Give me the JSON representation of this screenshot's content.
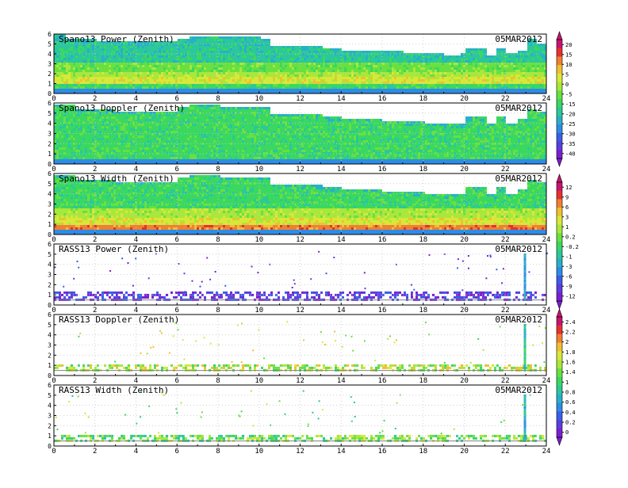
{
  "date_label": "05MAR2012",
  "x_ticks": [
    "0",
    "2",
    "4",
    "6",
    "8",
    "10",
    "12",
    "14",
    "16",
    "18",
    "20",
    "22",
    "24"
  ],
  "y_ticks": [
    "0",
    "1",
    "2",
    "3",
    "4",
    "5",
    "6"
  ],
  "colorbars": [
    {
      "ticks": [
        "20",
        "15",
        "10",
        "5",
        "0",
        "-5",
        "-15",
        "-20",
        "-25",
        "-30",
        "-35",
        "-40"
      ]
    },
    {
      "ticks": [
        "12",
        "9",
        "6",
        "3",
        "1",
        "0.2",
        "-0.2",
        "-1",
        "-3",
        "-6",
        "-9",
        "-12"
      ]
    },
    {
      "ticks": [
        "2.4",
        "2.2",
        "2",
        "1.8",
        "1.6",
        "1.4",
        "1",
        "0.8",
        "0.6",
        "0.4",
        "0.2",
        "0"
      ]
    }
  ],
  "colors": {
    "palette": [
      "#7a1fd0",
      "#5c3de0",
      "#3a5ee8",
      "#2f8ce6",
      "#28b0c8",
      "#2ac89a",
      "#3ad860",
      "#68e040",
      "#a8e838",
      "#d8e838",
      "#f0c030",
      "#f08030",
      "#e83030",
      "#c8146e"
    ],
    "grid": "#c8c8c8"
  },
  "chart_data": [
    {
      "type": "heatmap",
      "title": "Spano13 Power (Zenith)",
      "x_range": [
        0,
        24
      ],
      "y_range": [
        0,
        6
      ],
      "colorbar": 0,
      "top_height_profile": [
        [
          0,
          5.8
        ],
        [
          0.5,
          5.5
        ],
        [
          1,
          5.3
        ],
        [
          2,
          5.2
        ],
        [
          3,
          5.1
        ],
        [
          4,
          5.1
        ],
        [
          5,
          5.1
        ],
        [
          6,
          5.5
        ],
        [
          6.5,
          5.7
        ],
        [
          8,
          5.6
        ],
        [
          9,
          5.6
        ],
        [
          10,
          5.5
        ],
        [
          10.5,
          4.8
        ],
        [
          11,
          4.8
        ],
        [
          12,
          4.7
        ],
        [
          13,
          4.5
        ],
        [
          14,
          4.3
        ],
        [
          15,
          4.3
        ],
        [
          16,
          4.1
        ],
        [
          17,
          4.0
        ],
        [
          18,
          3.9
        ],
        [
          19,
          3.8
        ],
        [
          19.8,
          3.9
        ],
        [
          20,
          4.5
        ],
        [
          21,
          3.8
        ],
        [
          21.5,
          4.5
        ],
        [
          22,
          3.9
        ],
        [
          22.5,
          4.3
        ],
        [
          23,
          5.3
        ],
        [
          23.5,
          5.0
        ],
        [
          24,
          5.6
        ]
      ],
      "layers": [
        {
          "y_range": [
            0.9,
            1.5
          ],
          "level": 9
        },
        {
          "y_range": [
            1.5,
            2.1
          ],
          "level": 8
        },
        {
          "y_range": [
            2.1,
            3.0
          ],
          "level": 7
        },
        {
          "y_range": [
            3.0,
            6.0
          ],
          "level": 5
        }
      ]
    },
    {
      "type": "heatmap",
      "title": "Spano13 Doppler (Zenith)",
      "x_range": [
        0,
        24
      ],
      "y_range": [
        0,
        6
      ],
      "colorbar": 0,
      "top_height_profile": [
        [
          0,
          5.8
        ],
        [
          1,
          5.3
        ],
        [
          2,
          5.2
        ],
        [
          3,
          5.1
        ],
        [
          4,
          5.1
        ],
        [
          5,
          5.1
        ],
        [
          6,
          5.5
        ],
        [
          6.5,
          5.7
        ],
        [
          8,
          5.6
        ],
        [
          9,
          5.6
        ],
        [
          10,
          5.5
        ],
        [
          10.5,
          4.8
        ],
        [
          12,
          4.7
        ],
        [
          13,
          4.5
        ],
        [
          14,
          4.3
        ],
        [
          16,
          4.1
        ],
        [
          17,
          4.0
        ],
        [
          18,
          3.9
        ],
        [
          19,
          3.8
        ],
        [
          20,
          4.5
        ],
        [
          21,
          3.8
        ],
        [
          21.5,
          4.5
        ],
        [
          22,
          3.9
        ],
        [
          22.5,
          4.3
        ],
        [
          23,
          5.3
        ],
        [
          23.5,
          5.0
        ],
        [
          24,
          5.6
        ]
      ],
      "layers": [
        {
          "y_range": [
            0.0,
            6.0
          ],
          "level": 6
        }
      ]
    },
    {
      "type": "heatmap",
      "title": "Spano13 Width (Zenith)",
      "x_range": [
        0,
        24
      ],
      "y_range": [
        0,
        6
      ],
      "colorbar": 1,
      "top_height_profile": [
        [
          0,
          5.8
        ],
        [
          1,
          5.3
        ],
        [
          2,
          5.2
        ],
        [
          3,
          5.1
        ],
        [
          4,
          5.1
        ],
        [
          5,
          5.1
        ],
        [
          6,
          5.5
        ],
        [
          6.5,
          5.7
        ],
        [
          8,
          5.6
        ],
        [
          9,
          5.6
        ],
        [
          10,
          5.5
        ],
        [
          10.5,
          4.8
        ],
        [
          12,
          4.7
        ],
        [
          13,
          4.5
        ],
        [
          14,
          4.3
        ],
        [
          16,
          4.1
        ],
        [
          17,
          4.0
        ],
        [
          18,
          3.9
        ],
        [
          19,
          3.8
        ],
        [
          20,
          4.5
        ],
        [
          21,
          3.8
        ],
        [
          21.5,
          4.5
        ],
        [
          22,
          3.9
        ],
        [
          22.5,
          4.3
        ],
        [
          23,
          5.3
        ],
        [
          23.5,
          5.0
        ],
        [
          24,
          5.6
        ]
      ],
      "layers": [
        {
          "y_range": [
            0.3,
            0.9
          ],
          "level": 11
        },
        {
          "y_range": [
            0.9,
            1.6
          ],
          "level": 9
        },
        {
          "y_range": [
            1.6,
            2.5
          ],
          "level": 8
        },
        {
          "y_range": [
            2.5,
            6.0
          ],
          "level": 6
        }
      ]
    },
    {
      "type": "heatmap",
      "title": "RASS13 Power (Zenith)",
      "x_range": [
        0,
        24
      ],
      "y_range": [
        0,
        6
      ],
      "colorbar": 1,
      "band": {
        "y_range": [
          0.4,
          1.2
        ],
        "levels": [
          0,
          1,
          2
        ]
      },
      "spike": {
        "x": 22.9,
        "y_range": [
          0.4,
          4.9
        ],
        "levels": [
          3,
          4
        ]
      }
    },
    {
      "type": "heatmap",
      "title": "RASS13 Doppler (Zenith)",
      "x_range": [
        0,
        24
      ],
      "y_range": [
        0,
        6
      ],
      "colorbar": 2,
      "band": {
        "y_range": [
          0.4,
          1.1
        ],
        "levels": [
          6,
          7,
          8,
          9,
          10
        ]
      },
      "spike": {
        "x": 22.9,
        "y_range": [
          0.4,
          5.0
        ],
        "levels": [
          4,
          5,
          6
        ]
      }
    },
    {
      "type": "heatmap",
      "title": "RASS13 Width (Zenith)",
      "x_range": [
        0,
        24
      ],
      "y_range": [
        0,
        6
      ],
      "colorbar": 2,
      "band": {
        "y_range": [
          0.4,
          1.1
        ],
        "levels": [
          5,
          6,
          7,
          8,
          9
        ]
      },
      "spike": {
        "x": 22.9,
        "y_range": [
          0.4,
          5.0
        ],
        "levels": [
          3,
          4,
          5
        ]
      }
    }
  ]
}
